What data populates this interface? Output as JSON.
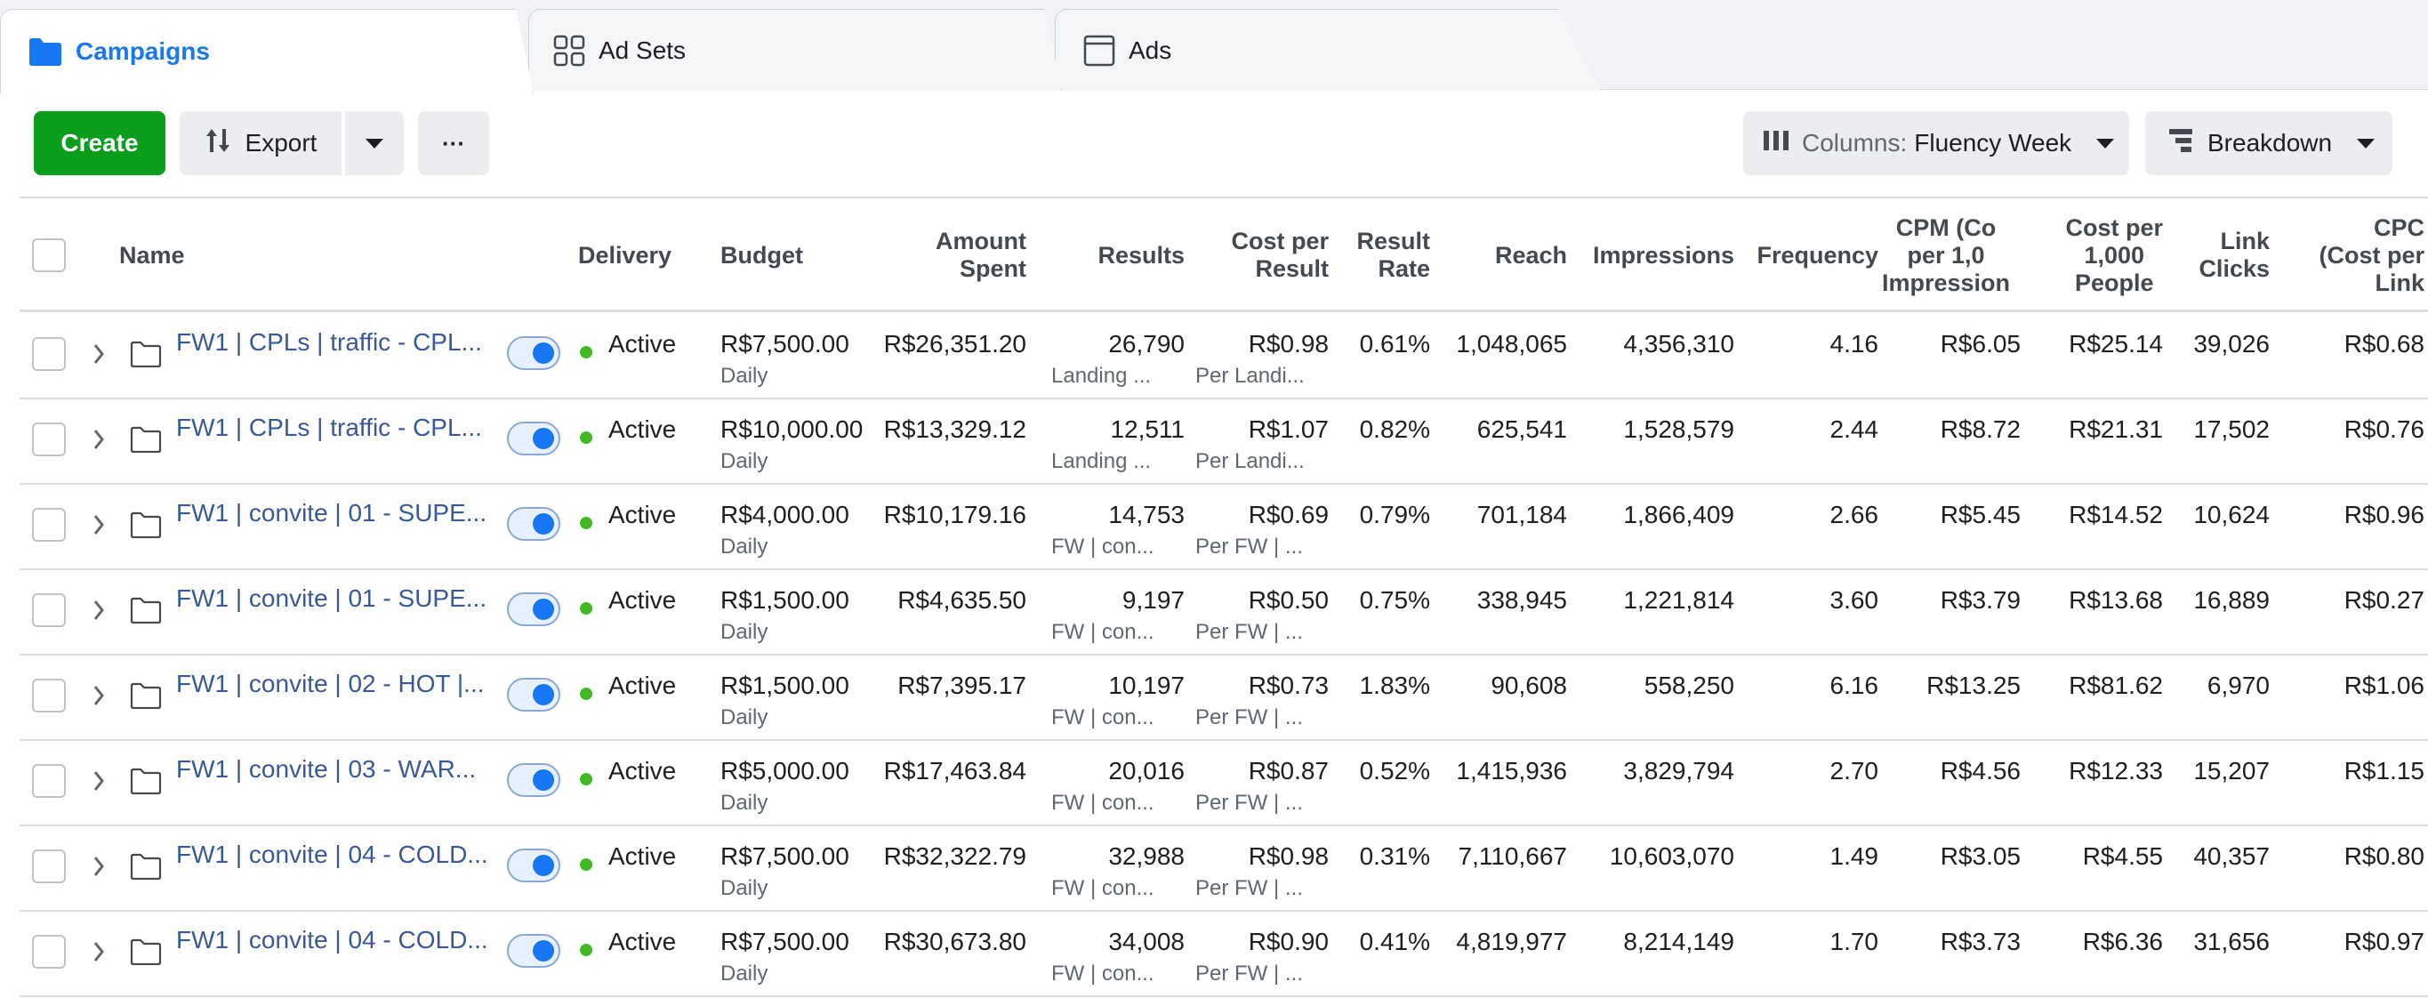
{
  "tabs": [
    {
      "label": "Campaigns",
      "icon": "folder-icon",
      "active": true
    },
    {
      "label": "Ad Sets",
      "icon": "grid-icon",
      "active": false
    },
    {
      "label": "Ads",
      "icon": "window-icon",
      "active": false
    }
  ],
  "toolbar": {
    "create_label": "Create",
    "export_label": "Export",
    "more_label": "···",
    "columns_prefix": "Columns:",
    "columns_value": "Fluency Week",
    "breakdown_label": "Breakdown"
  },
  "colors": {
    "accent": "#1877f2",
    "create": "#0a9e1c",
    "active_dot": "#42b72a",
    "link": "#385898"
  },
  "table": {
    "headers": {
      "name": "Name",
      "delivery": "Delivery",
      "budget": "Budget",
      "amount_spent": "Amount\nSpent",
      "results": "Results",
      "cost_per_result": "Cost per\nResult",
      "result_rate": "Result\nRate",
      "reach": "Reach",
      "impressions": "Impressions",
      "frequency": "Frequency",
      "cpm": "CPM (Co\nper 1,0\nImpression",
      "cost_per_1000_people": "Cost per\n1,000\nPeople",
      "link_clicks": "Link\nClicks",
      "cpc": "CPC\n(Cost per\nLink"
    },
    "rows": [
      {
        "name": "FW1 | CPLs | traffic - CPL...",
        "delivery": "Active",
        "budget": "R$7,500.00",
        "budget_type": "Daily",
        "amount_spent": "R$26,351.20",
        "results": "26,790",
        "results_sub": "Landing ...",
        "cost_per_result": "R$0.98",
        "cost_sub": "Per Landi...",
        "result_rate": "0.61%",
        "reach": "1,048,065",
        "impressions": "4,356,310",
        "frequency": "4.16",
        "cpm": "R$6.05",
        "cost_per_1000_people": "R$25.14",
        "link_clicks": "39,026",
        "cpc": "R$0.68"
      },
      {
        "name": "FW1 | CPLs | traffic - CPL...",
        "delivery": "Active",
        "budget": "R$10,000.00",
        "budget_type": "Daily",
        "amount_spent": "R$13,329.12",
        "results": "12,511",
        "results_sub": "Landing ...",
        "cost_per_result": "R$1.07",
        "cost_sub": "Per Landi...",
        "result_rate": "0.82%",
        "reach": "625,541",
        "impressions": "1,528,579",
        "frequency": "2.44",
        "cpm": "R$8.72",
        "cost_per_1000_people": "R$21.31",
        "link_clicks": "17,502",
        "cpc": "R$0.76"
      },
      {
        "name": "FW1 | convite | 01 - SUPE...",
        "delivery": "Active",
        "budget": "R$4,000.00",
        "budget_type": "Daily",
        "amount_spent": "R$10,179.16",
        "results": "14,753",
        "results_sub": "FW | con...",
        "cost_per_result": "R$0.69",
        "cost_sub": "Per FW | ...",
        "result_rate": "0.79%",
        "reach": "701,184",
        "impressions": "1,866,409",
        "frequency": "2.66",
        "cpm": "R$5.45",
        "cost_per_1000_people": "R$14.52",
        "link_clicks": "10,624",
        "cpc": "R$0.96"
      },
      {
        "name": "FW1 | convite | 01 - SUPE...",
        "delivery": "Active",
        "budget": "R$1,500.00",
        "budget_type": "Daily",
        "amount_spent": "R$4,635.50",
        "results": "9,197",
        "results_sub": "FW | con...",
        "cost_per_result": "R$0.50",
        "cost_sub": "Per FW | ...",
        "result_rate": "0.75%",
        "reach": "338,945",
        "impressions": "1,221,814",
        "frequency": "3.60",
        "cpm": "R$3.79",
        "cost_per_1000_people": "R$13.68",
        "link_clicks": "16,889",
        "cpc": "R$0.27"
      },
      {
        "name": "FW1 | convite | 02 - HOT |...",
        "delivery": "Active",
        "budget": "R$1,500.00",
        "budget_type": "Daily",
        "amount_spent": "R$7,395.17",
        "results": "10,197",
        "results_sub": "FW | con...",
        "cost_per_result": "R$0.73",
        "cost_sub": "Per FW | ...",
        "result_rate": "1.83%",
        "reach": "90,608",
        "impressions": "558,250",
        "frequency": "6.16",
        "cpm": "R$13.25",
        "cost_per_1000_people": "R$81.62",
        "link_clicks": "6,970",
        "cpc": "R$1.06"
      },
      {
        "name": "FW1 | convite | 03 - WAR...",
        "delivery": "Active",
        "budget": "R$5,000.00",
        "budget_type": "Daily",
        "amount_spent": "R$17,463.84",
        "results": "20,016",
        "results_sub": "FW | con...",
        "cost_per_result": "R$0.87",
        "cost_sub": "Per FW | ...",
        "result_rate": "0.52%",
        "reach": "1,415,936",
        "impressions": "3,829,794",
        "frequency": "2.70",
        "cpm": "R$4.56",
        "cost_per_1000_people": "R$12.33",
        "link_clicks": "15,207",
        "cpc": "R$1.15"
      },
      {
        "name": "FW1 | convite | 04 - COLD...",
        "delivery": "Active",
        "budget": "R$7,500.00",
        "budget_type": "Daily",
        "amount_spent": "R$32,322.79",
        "results": "32,988",
        "results_sub": "FW | con...",
        "cost_per_result": "R$0.98",
        "cost_sub": "Per FW | ...",
        "result_rate": "0.31%",
        "reach": "7,110,667",
        "impressions": "10,603,070",
        "frequency": "1.49",
        "cpm": "R$3.05",
        "cost_per_1000_people": "R$4.55",
        "link_clicks": "40,357",
        "cpc": "R$0.80"
      },
      {
        "name": "FW1 | convite | 04 - COLD...",
        "delivery": "Active",
        "budget": "R$7,500.00",
        "budget_type": "Daily",
        "amount_spent": "R$30,673.80",
        "results": "34,008",
        "results_sub": "FW | con...",
        "cost_per_result": "R$0.90",
        "cost_sub": "Per FW | ...",
        "result_rate": "0.41%",
        "reach": "4,819,977",
        "impressions": "8,214,149",
        "frequency": "1.70",
        "cpm": "R$3.73",
        "cost_per_1000_people": "R$6.36",
        "link_clicks": "31,656",
        "cpc": "R$0.97"
      }
    ]
  }
}
